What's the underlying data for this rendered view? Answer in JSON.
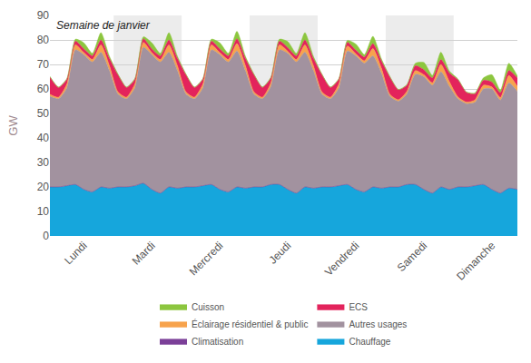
{
  "chart_data": {
    "type": "area",
    "title": "Semaine de janvier",
    "y_label": "GW",
    "stacked": true,
    "grid": true,
    "legend": "bottom",
    "ylim": [
      0,
      90
    ],
    "yticks": [
      0,
      10,
      20,
      30,
      40,
      50,
      60,
      70,
      80,
      90
    ],
    "categories": [
      null,
      null,
      null,
      null,
      "Lundi",
      null,
      null,
      null,
      null,
      null,
      null,
      null,
      "Mardi",
      null,
      null,
      null,
      null,
      null,
      null,
      null,
      "Mercredi",
      null,
      null,
      null,
      null,
      null,
      null,
      null,
      "Jeudi",
      null,
      null,
      null,
      null,
      null,
      null,
      null,
      "Vendredi",
      null,
      null,
      null,
      null,
      null,
      null,
      null,
      "Samedi",
      null,
      null,
      null,
      null,
      null,
      null,
      null,
      "Dimanche",
      null,
      null,
      null
    ],
    "series": [
      {
        "name": "Chauffage",
        "color": "#16a6dc",
        "values": [
          20,
          20,
          20.5,
          21,
          19,
          18,
          20,
          19.5,
          20,
          20,
          20.5,
          21.5,
          19,
          17.5,
          20,
          19.5,
          20,
          20,
          20.5,
          21,
          19,
          18,
          20,
          19.5,
          20,
          20,
          21,
          21,
          19,
          17.5,
          20,
          19.5,
          20,
          20,
          20.5,
          21,
          19,
          18,
          20,
          19.5,
          20,
          20,
          21,
          21,
          19,
          17.5,
          20,
          19,
          20,
          20,
          20.5,
          21,
          19,
          17.5,
          19.5,
          19
        ]
      },
      {
        "name": "Climatisation",
        "color": "#7b3f98",
        "values": [
          0,
          0,
          0,
          0,
          0,
          0,
          0,
          0,
          0,
          0,
          0,
          0,
          0,
          0,
          0,
          0,
          0,
          0,
          0,
          0,
          0,
          0,
          0,
          0,
          0,
          0,
          0,
          0,
          0,
          0,
          0,
          0,
          0,
          0,
          0,
          0,
          0,
          0,
          0,
          0,
          0,
          0,
          0,
          0,
          0,
          0,
          0,
          0,
          0,
          0,
          0,
          0,
          0,
          0,
          0,
          0
        ]
      },
      {
        "name": "Autres usages",
        "color": "#a2929f",
        "values": [
          37,
          36,
          40,
          55,
          55,
          53,
          55,
          48,
          38,
          36,
          40,
          55.5,
          55,
          53.5,
          55,
          48,
          38,
          36,
          40,
          55,
          55,
          53,
          55.5,
          48,
          38,
          36,
          40,
          55,
          55.5,
          53.5,
          55,
          48,
          38,
          36,
          40,
          54.5,
          54.5,
          52.5,
          53.5,
          47,
          37,
          35,
          37,
          45,
          46,
          44,
          47,
          42,
          36,
          34,
          34,
          39,
          41,
          38,
          43,
          40
        ]
      },
      {
        "name": "Éclairage résidentiel & public",
        "color": "#f7a34c",
        "values": [
          0.8,
          0.6,
          1.5,
          2,
          0.8,
          1,
          3,
          2,
          0.8,
          0.6,
          1.5,
          2,
          0.8,
          1,
          3,
          2,
          0.8,
          0.6,
          1.5,
          2,
          0.8,
          1,
          3,
          2,
          0.8,
          0.6,
          1.5,
          2,
          0.8,
          1,
          3,
          2,
          0.8,
          0.6,
          1.5,
          2,
          0.8,
          1,
          3,
          2,
          0.8,
          0.6,
          1,
          1.5,
          0.8,
          1,
          3,
          2,
          0.8,
          0.6,
          1,
          1.5,
          0.8,
          1,
          3,
          2
        ]
      },
      {
        "name": "ECS",
        "color": "#e3245c",
        "values": [
          7,
          4,
          2,
          1.5,
          1.5,
          1.5,
          2,
          3,
          7,
          4,
          2,
          1.5,
          1.5,
          1.5,
          2,
          3,
          7,
          4,
          2,
          1.5,
          1.5,
          1.5,
          2,
          3,
          7,
          4,
          2,
          1.5,
          1.5,
          1.5,
          2,
          3,
          7,
          4,
          2,
          1.5,
          1.5,
          1.5,
          2,
          3,
          7,
          4,
          2.5,
          2,
          2,
          2,
          2,
          3.5,
          7,
          4,
          2.5,
          2,
          2,
          2,
          2,
          3.5
        ]
      },
      {
        "name": "Cuisson",
        "color": "#8cc63f",
        "values": [
          0.3,
          0.2,
          0.3,
          0.8,
          2.5,
          1,
          3,
          0.8,
          0.3,
          0.2,
          0.3,
          0.8,
          2.5,
          1,
          3,
          0.8,
          0.3,
          0.2,
          0.3,
          0.8,
          2.5,
          1,
          3,
          0.8,
          0.3,
          0.2,
          0.3,
          0.8,
          2.5,
          1,
          3,
          0.8,
          0.3,
          0.2,
          0.3,
          0.8,
          2.5,
          1,
          3,
          0.8,
          0.3,
          0.2,
          0.3,
          1,
          3,
          1,
          3,
          0.8,
          0.3,
          0.2,
          0.3,
          1,
          3,
          1,
          3,
          0.8
        ]
      }
    ]
  }
}
